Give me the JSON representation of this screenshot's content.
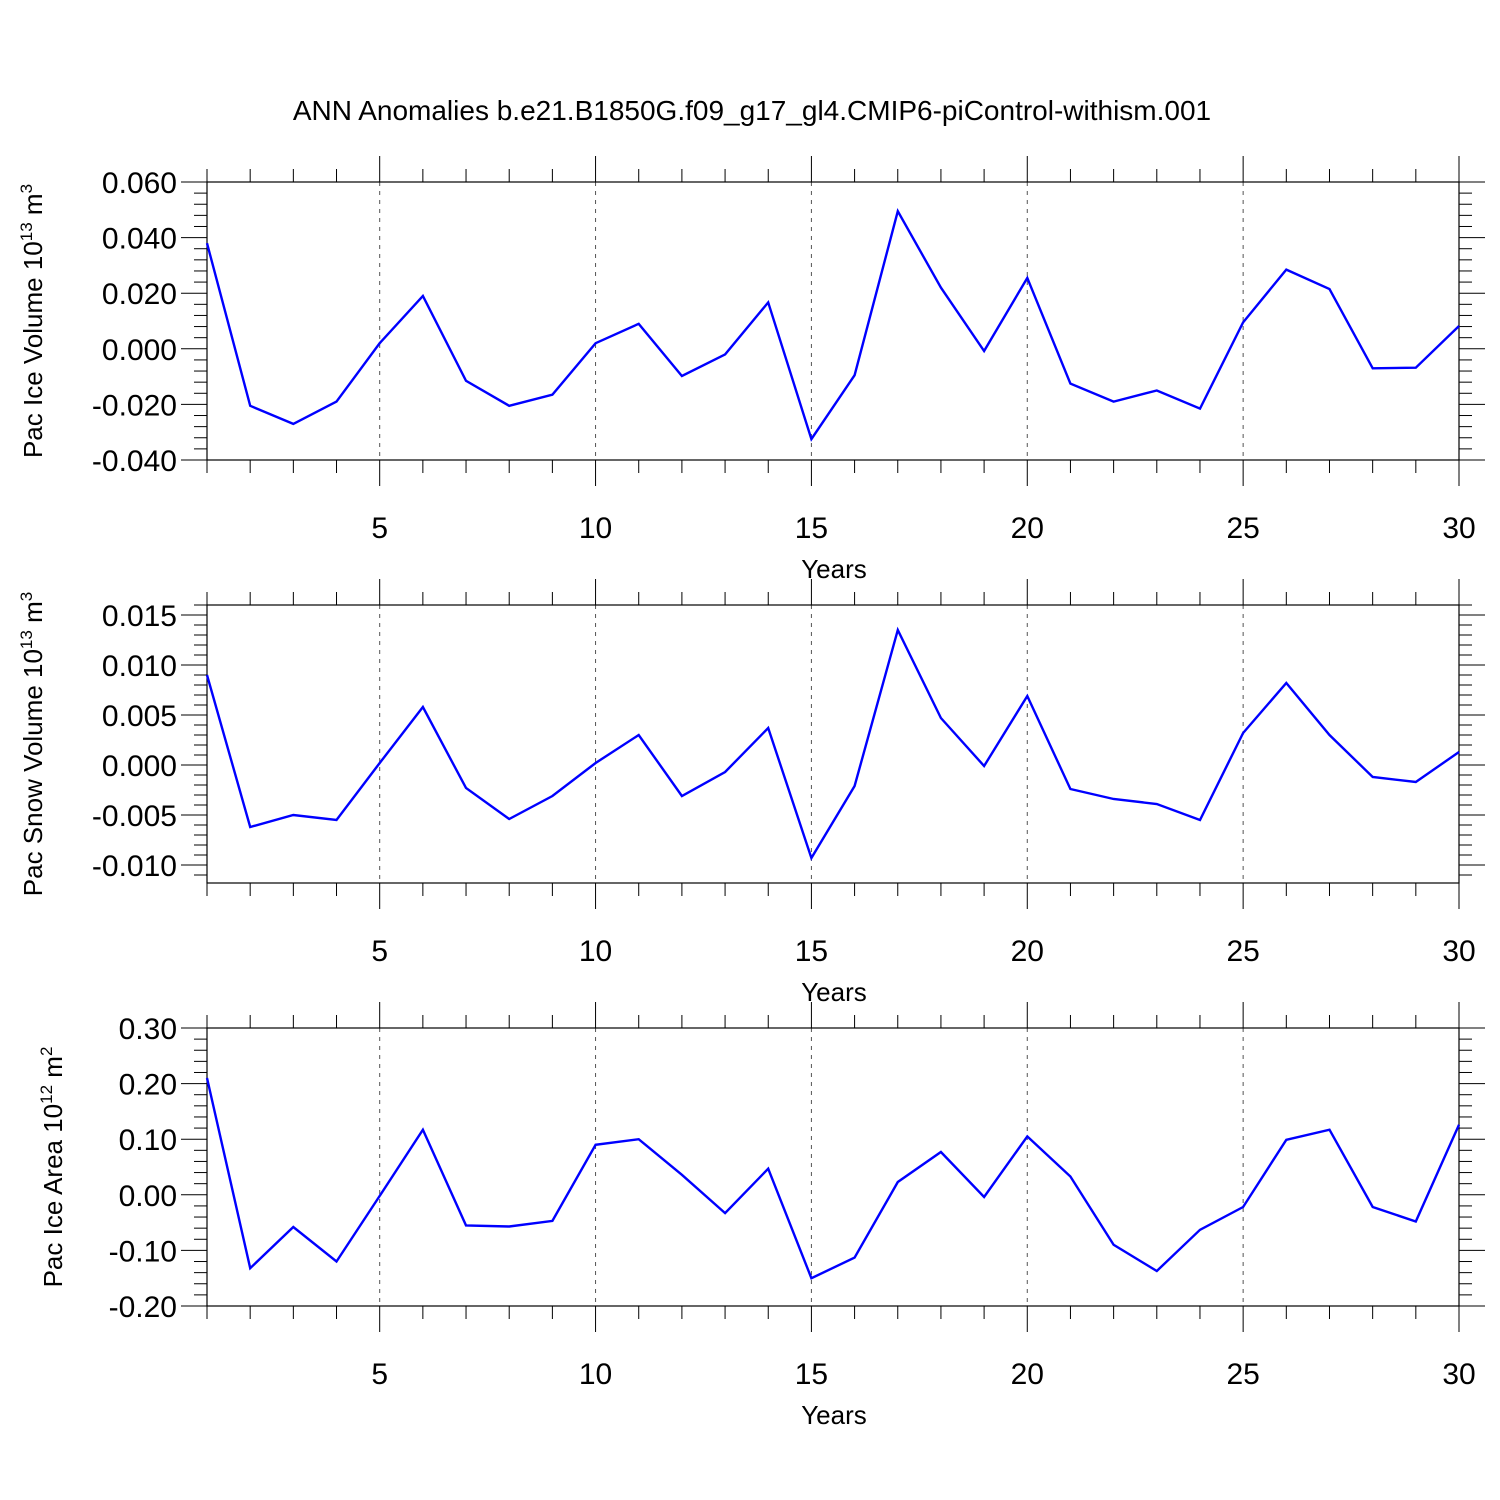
{
  "title": "ANN Anomalies b.e21.B1850G.f09_g17_gl4.CMIP6-piControl-withism.001",
  "colors": {
    "series": "#0000ff",
    "axis": "#000000",
    "grid": "#555555"
  },
  "chart_data": [
    {
      "type": "line",
      "title": "ANN Anomalies b.e21.B1850G.f09_g17_gl4.CMIP6-piControl-withism.001",
      "xlabel": "Years",
      "ylabel": {
        "text": "Pac Ice Volume 10",
        "exp": "13",
        "unit": " m",
        "unitExp": "3"
      },
      "xlim": [
        1,
        30
      ],
      "ylim": [
        -0.04,
        0.06
      ],
      "yticks": [
        -0.04,
        -0.02,
        0.0,
        0.02,
        0.04,
        0.06
      ],
      "ytick_labels": [
        "-0.040",
        "-0.020",
        "0.000",
        "0.020",
        "0.040",
        "0.060"
      ],
      "xticks": [
        5,
        10,
        15,
        20,
        25,
        30
      ],
      "xtick_labels": [
        "5",
        "10",
        "15",
        "20",
        "25",
        "30"
      ],
      "grid": "dashed vertical at major x ticks",
      "x": [
        1,
        2,
        3,
        4,
        5,
        6,
        7,
        8,
        9,
        10,
        11,
        12,
        13,
        14,
        15,
        16,
        17,
        18,
        19,
        20,
        21,
        22,
        23,
        24,
        25,
        26,
        27,
        28,
        29,
        30
      ],
      "series": [
        {
          "name": "Pac Ice Volume",
          "values": [
            0.038,
            -0.0205,
            -0.027,
            -0.019,
            0.002,
            0.019,
            -0.0115,
            -0.0205,
            -0.0165,
            0.002,
            0.009,
            -0.0098,
            -0.002,
            0.0167,
            -0.0325,
            -0.0095,
            0.0495,
            0.022,
            -0.0008,
            0.0255,
            -0.0125,
            -0.019,
            -0.015,
            -0.0215,
            0.0095,
            0.0285,
            0.0215,
            -0.007,
            -0.0068,
            0.0082
          ]
        }
      ]
    },
    {
      "type": "line",
      "xlabel": "Years",
      "ylabel": {
        "text": "Pac Snow Volume 10",
        "exp": "13",
        "unit": " m",
        "unitExp": "3"
      },
      "xlim": [
        1,
        30
      ],
      "ylim": [
        -0.0118,
        0.016
      ],
      "yticks": [
        -0.01,
        -0.005,
        0.0,
        0.005,
        0.01,
        0.015
      ],
      "ytick_labels": [
        "-0.010",
        "-0.005",
        "0.000",
        "0.005",
        "0.010",
        "0.015"
      ],
      "xticks": [
        5,
        10,
        15,
        20,
        25,
        30
      ],
      "xtick_labels": [
        "5",
        "10",
        "15",
        "20",
        "25",
        "30"
      ],
      "grid": "dashed vertical at major x ticks",
      "x": [
        1,
        2,
        3,
        4,
        5,
        6,
        7,
        8,
        9,
        10,
        11,
        12,
        13,
        14,
        15,
        16,
        17,
        18,
        19,
        20,
        21,
        22,
        23,
        24,
        25,
        26,
        27,
        28,
        29,
        30
      ],
      "series": [
        {
          "name": "Pac Snow Volume",
          "values": [
            0.009,
            -0.0062,
            -0.005,
            -0.0055,
            0.0002,
            0.0058,
            -0.0023,
            -0.0054,
            -0.0031,
            0.0002,
            0.003,
            -0.0031,
            -0.0007,
            0.0037,
            -0.0093,
            -0.0021,
            0.0135,
            0.0047,
            -0.0001,
            0.0069,
            -0.0024,
            -0.0034,
            -0.0039,
            -0.0055,
            0.0032,
            0.0082,
            0.003,
            -0.0012,
            -0.0017,
            0.0013
          ]
        }
      ]
    },
    {
      "type": "line",
      "xlabel": "Years",
      "ylabel": {
        "text": "Pac Ice Area 10",
        "exp": "12",
        "unit": " m",
        "unitExp": "2"
      },
      "xlim": [
        1,
        30
      ],
      "ylim": [
        -0.2,
        0.3
      ],
      "yticks": [
        -0.2,
        -0.1,
        0.0,
        0.1,
        0.2,
        0.3
      ],
      "ytick_labels": [
        "-0.20",
        "-0.10",
        "0.00",
        "0.10",
        "0.20",
        "0.30"
      ],
      "xticks": [
        5,
        10,
        15,
        20,
        25,
        30
      ],
      "xtick_labels": [
        "5",
        "10",
        "15",
        "20",
        "25",
        "30"
      ],
      "grid": "dashed vertical at major x ticks",
      "x": [
        1,
        2,
        3,
        4,
        5,
        6,
        7,
        8,
        9,
        10,
        11,
        12,
        13,
        14,
        15,
        16,
        17,
        18,
        19,
        20,
        21,
        22,
        23,
        24,
        25,
        26,
        27,
        28,
        29,
        30
      ],
      "series": [
        {
          "name": "Pac Ice Area",
          "values": [
            0.21,
            -0.132,
            -0.058,
            -0.12,
            -0.002,
            0.117,
            -0.055,
            -0.057,
            -0.047,
            0.09,
            0.1,
            0.036,
            -0.033,
            0.047,
            -0.15,
            -0.113,
            0.023,
            0.077,
            -0.004,
            0.105,
            0.033,
            -0.09,
            -0.137,
            -0.063,
            -0.022,
            0.099,
            0.117,
            -0.022,
            -0.048,
            0.126
          ]
        }
      ]
    }
  ]
}
